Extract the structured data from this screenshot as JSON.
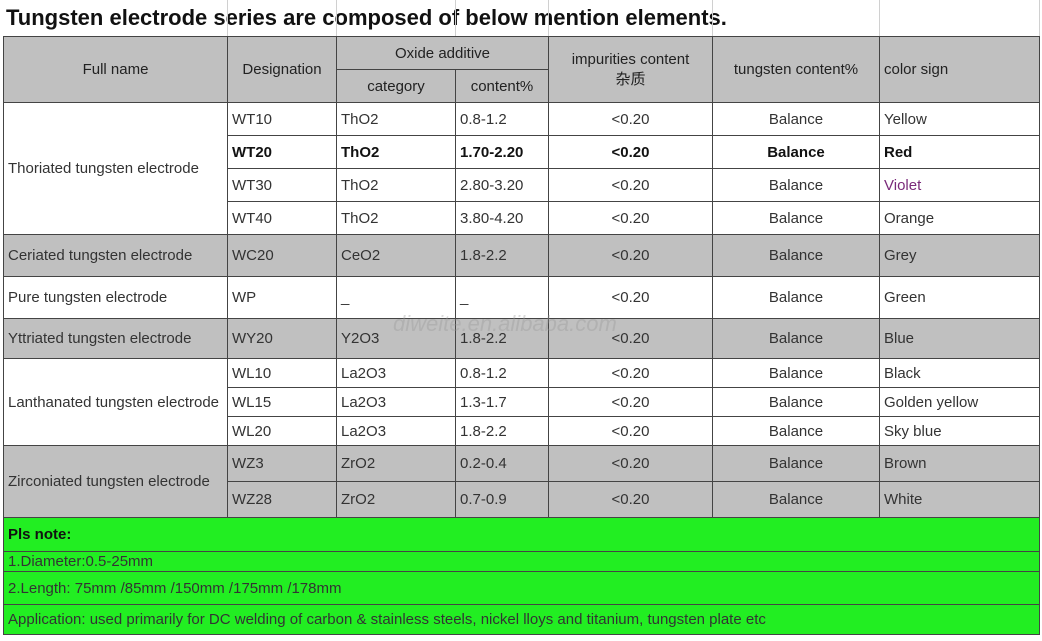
{
  "title": "Tungsten electrode series are composed of below mention elements.",
  "headers": {
    "full_name": "Full name",
    "designation": "Designation",
    "oxide_additive": "Oxide additive",
    "category": "category",
    "content": "content%",
    "impurities_line1": "impurities content",
    "impurities_line2": "杂质",
    "tungsten_content": "tungsten content%",
    "color_sign": "color sign"
  },
  "groups": [
    {
      "name": "Thoriated tungsten electrode",
      "rows": [
        {
          "designation": "WT10",
          "category": "ThO2",
          "content": "0.8-1.2",
          "impurities": "<0.20",
          "tungsten": "Balance",
          "color": "Yellow"
        },
        {
          "designation": "WT20",
          "category": "ThO2",
          "content": "1.70-2.20",
          "impurities": "<0.20",
          "tungsten": "Balance",
          "color": "Red"
        },
        {
          "designation": "WT30",
          "category": "ThO2",
          "content": "2.80-3.20",
          "impurities": "<0.20",
          "tungsten": "Balance",
          "color": "Violet"
        },
        {
          "designation": "WT40",
          "category": "ThO2",
          "content": "3.80-4.20",
          "impurities": "<0.20",
          "tungsten": "Balance",
          "color": "Orange"
        }
      ]
    },
    {
      "name": "Ceriated tungsten electrode",
      "rows": [
        {
          "designation": "WC20",
          "category": "CeO2",
          "content": "1.8-2.2",
          "impurities": "<0.20",
          "tungsten": "Balance",
          "color": "Grey"
        }
      ]
    },
    {
      "name": "Pure tungsten electrode",
      "rows": [
        {
          "designation": "WP",
          "category": "_",
          "content": "_",
          "impurities": "<0.20",
          "tungsten": "Balance",
          "color": "Green"
        }
      ]
    },
    {
      "name": "Yttriated tungsten electrode",
      "rows": [
        {
          "designation": "WY20",
          "category": "Y2O3",
          "content": "1.8-2.2",
          "impurities": "<0.20",
          "tungsten": "Balance",
          "color": "Blue"
        }
      ]
    },
    {
      "name": "Lanthanated tungsten electrode",
      "rows": [
        {
          "designation": "WL10",
          "category": "La2O3",
          "content": "0.8-1.2",
          "impurities": "<0.20",
          "tungsten": "Balance",
          "color": "Black"
        },
        {
          "designation": "WL15",
          "category": "La2O3",
          "content": "1.3-1.7",
          "impurities": "<0.20",
          "tungsten": "Balance",
          "color": "Golden yellow"
        },
        {
          "designation": "WL20",
          "category": "La2O3",
          "content": "1.8-2.2",
          "impurities": "<0.20",
          "tungsten": "Balance",
          "color": "Sky blue"
        }
      ]
    },
    {
      "name": "Zirconiated tungsten electrode",
      "rows": [
        {
          "designation": "WZ3",
          "category": "ZrO2",
          "content": "0.2-0.4",
          "impurities": "<0.20",
          "tungsten": "Balance",
          "color": "Brown"
        },
        {
          "designation": "WZ28",
          "category": "ZrO2",
          "content": "0.7-0.9",
          "impurities": "<0.20",
          "tungsten": "Balance",
          "color": "White"
        }
      ]
    }
  ],
  "notes": {
    "heading": "Pls note:",
    "diameter": "1.Diameter:0.5-25mm",
    "length": "2.Length: 75mm /85mm /150mm /175mm /178mm",
    "application": "Application: used primarily for DC welding of carbon & stainless steels, nickel lloys and titanium, tungsten plate etc"
  },
  "watermark": "diweite.en.alibaba.com",
  "colors": {
    "header_grey": "#c0c0c0",
    "note_green": "#22ee22",
    "violet_text": "#7a2a7a"
  }
}
